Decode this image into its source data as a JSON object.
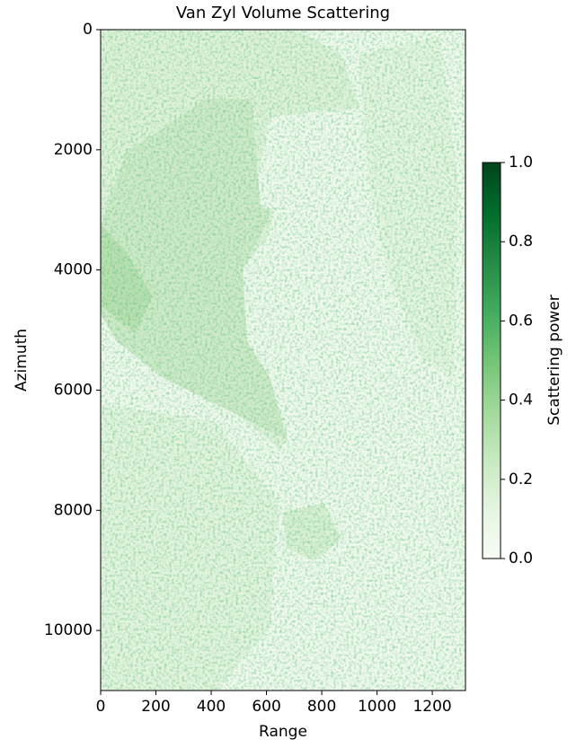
{
  "chart_data": {
    "type": "heatmap",
    "title": "Van Zyl Volume Scattering",
    "xlabel": "Range",
    "ylabel": "Azimuth",
    "xlim": [
      0,
      1320
    ],
    "xticks": [
      0,
      200,
      400,
      600,
      800,
      1000,
      1200
    ],
    "ylim": [
      11000,
      0
    ],
    "yticks": [
      0,
      2000,
      4000,
      6000,
      8000,
      10000
    ],
    "colorbar": {
      "label": "Scattering power",
      "clim": [
        0,
        1
      ],
      "ticks": [
        {
          "value": 0,
          "label": "0.0"
        },
        {
          "value": 0.2,
          "label": "0.2"
        },
        {
          "value": 0.4,
          "label": "0.4"
        },
        {
          "value": 0.6,
          "label": "0.6"
        },
        {
          "value": 0.8,
          "label": "0.8"
        },
        {
          "value": 1,
          "label": "1.0"
        }
      ],
      "colormap": [
        "#f7fcf5",
        "#e5f5e0",
        "#c7e9c0",
        "#a1d99b",
        "#74c476",
        "#41ab5d",
        "#238b45",
        "#006d2c",
        "#00441b"
      ]
    }
  }
}
